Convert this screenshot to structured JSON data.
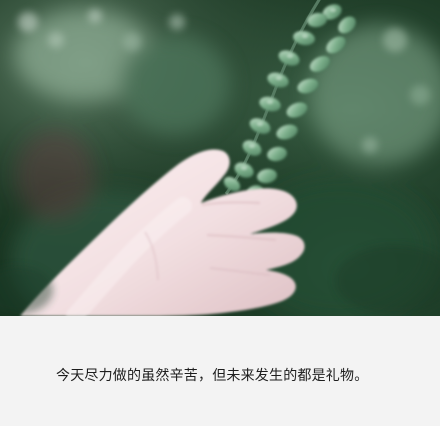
{
  "photo": {
    "icon": "hand-touching-plant-photo",
    "palette": {
      "background_dark": "#17331f",
      "background_mid": "#2d5a3a",
      "background_light": "#6f8f76",
      "leaf": "#6ea07d",
      "leaf_highlight": "#bfd9c4",
      "skin": "#f2dfe1",
      "skin_shadow": "#d8b8bd"
    }
  },
  "caption": {
    "text": "今天尽力做的虽然辛苦，但未来发生的都是礼物。"
  }
}
